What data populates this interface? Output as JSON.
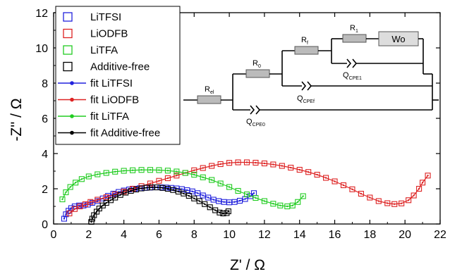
{
  "chart_data": {
    "type": "scatter",
    "xlabel": "Z' / Ω",
    "ylabel": "-Z'' / Ω",
    "xlim": [
      0,
      22
    ],
    "ylim": [
      0,
      12
    ],
    "xticks": [
      "0",
      "2",
      "4",
      "6",
      "8",
      "10",
      "12",
      "14",
      "16",
      "18",
      "20",
      "22"
    ],
    "yticks": [
      "0",
      "2",
      "4",
      "6",
      "8",
      "10",
      "12"
    ],
    "grid": false,
    "legend_position": "top-left",
    "series": [
      {
        "name": "LiTFSI",
        "fit_name": "fit LiTFSI",
        "color": "#2222dd",
        "points": [
          [
            0.6,
            0.3
          ],
          [
            0.7,
            0.55
          ],
          [
            0.85,
            0.75
          ],
          [
            1.0,
            0.9
          ],
          [
            1.2,
            1.0
          ],
          [
            1.45,
            1.05
          ],
          [
            1.7,
            1.05
          ],
          [
            1.95,
            1.1
          ],
          [
            2.2,
            1.2
          ],
          [
            2.5,
            1.3
          ],
          [
            2.8,
            1.45
          ],
          [
            3.1,
            1.6
          ],
          [
            3.4,
            1.72
          ],
          [
            3.7,
            1.82
          ],
          [
            4.0,
            1.9
          ],
          [
            4.3,
            1.96
          ],
          [
            4.6,
            2.0
          ],
          [
            4.9,
            2.03
          ],
          [
            5.2,
            2.05
          ],
          [
            5.5,
            2.07
          ],
          [
            5.8,
            2.08
          ],
          [
            6.1,
            2.08
          ],
          [
            6.4,
            2.07
          ],
          [
            6.7,
            2.05
          ],
          [
            7.0,
            2.02
          ],
          [
            7.3,
            1.98
          ],
          [
            7.6,
            1.92
          ],
          [
            7.9,
            1.85
          ],
          [
            8.2,
            1.75
          ],
          [
            8.5,
            1.62
          ],
          [
            8.8,
            1.5
          ],
          [
            9.1,
            1.38
          ],
          [
            9.4,
            1.3
          ],
          [
            9.7,
            1.25
          ],
          [
            10.0,
            1.23
          ],
          [
            10.3,
            1.25
          ],
          [
            10.6,
            1.32
          ],
          [
            10.9,
            1.42
          ],
          [
            11.2,
            1.58
          ],
          [
            11.4,
            1.75
          ]
        ]
      },
      {
        "name": "LiODFB",
        "fit_name": "fit LiODFB",
        "color": "#dd2222",
        "points": [
          [
            0.9,
            0.6
          ],
          [
            1.2,
            0.85
          ],
          [
            1.5,
            1.0
          ],
          [
            1.8,
            1.12
          ],
          [
            2.1,
            1.25
          ],
          [
            2.5,
            1.38
          ],
          [
            3.0,
            1.52
          ],
          [
            3.5,
            1.68
          ],
          [
            4.0,
            1.84
          ],
          [
            4.5,
            2.0
          ],
          [
            5.0,
            2.15
          ],
          [
            5.5,
            2.3
          ],
          [
            6.0,
            2.45
          ],
          [
            6.5,
            2.6
          ],
          [
            7.0,
            2.75
          ],
          [
            7.5,
            2.9
          ],
          [
            8.0,
            3.05
          ],
          [
            8.5,
            3.18
          ],
          [
            9.0,
            3.3
          ],
          [
            9.5,
            3.4
          ],
          [
            10.0,
            3.47
          ],
          [
            10.5,
            3.5
          ],
          [
            11.0,
            3.5
          ],
          [
            11.5,
            3.48
          ],
          [
            12.0,
            3.44
          ],
          [
            12.5,
            3.38
          ],
          [
            13.0,
            3.3
          ],
          [
            13.5,
            3.2
          ],
          [
            14.0,
            3.08
          ],
          [
            14.5,
            2.95
          ],
          [
            15.0,
            2.8
          ],
          [
            15.5,
            2.62
          ],
          [
            16.0,
            2.42
          ],
          [
            16.5,
            2.2
          ],
          [
            17.0,
            1.97
          ],
          [
            17.5,
            1.72
          ],
          [
            18.0,
            1.5
          ],
          [
            18.5,
            1.3
          ],
          [
            19.0,
            1.18
          ],
          [
            19.4,
            1.13
          ],
          [
            19.8,
            1.17
          ],
          [
            20.2,
            1.35
          ],
          [
            20.5,
            1.62
          ],
          [
            20.8,
            2.0
          ],
          [
            21.0,
            2.35
          ],
          [
            21.3,
            2.75
          ]
        ]
      },
      {
        "name": "LiTFA",
        "fit_name": "fit LiTFA",
        "color": "#22cc22",
        "points": [
          [
            0.5,
            1.4
          ],
          [
            0.7,
            1.8
          ],
          [
            0.95,
            2.1
          ],
          [
            1.25,
            2.35
          ],
          [
            1.6,
            2.55
          ],
          [
            2.0,
            2.7
          ],
          [
            2.5,
            2.82
          ],
          [
            3.0,
            2.9
          ],
          [
            3.5,
            2.97
          ],
          [
            4.0,
            3.02
          ],
          [
            4.5,
            3.05
          ],
          [
            5.0,
            3.07
          ],
          [
            5.5,
            3.07
          ],
          [
            6.0,
            3.06
          ],
          [
            6.5,
            3.03
          ],
          [
            7.0,
            2.98
          ],
          [
            7.5,
            2.9
          ],
          [
            8.0,
            2.8
          ],
          [
            8.5,
            2.65
          ],
          [
            9.0,
            2.5
          ],
          [
            9.5,
            2.3
          ],
          [
            10.0,
            2.1
          ],
          [
            10.5,
            1.88
          ],
          [
            11.0,
            1.68
          ],
          [
            11.5,
            1.48
          ],
          [
            12.0,
            1.3
          ],
          [
            12.5,
            1.15
          ],
          [
            12.9,
            1.05
          ],
          [
            13.3,
            1.0
          ],
          [
            13.6,
            1.05
          ],
          [
            13.9,
            1.25
          ],
          [
            14.2,
            1.58
          ]
        ]
      },
      {
        "name": "Additive-free",
        "fit_name": "fit Additive-free",
        "color": "#000000",
        "points": [
          [
            2.15,
            0.12
          ],
          [
            2.2,
            0.3
          ],
          [
            2.3,
            0.5
          ],
          [
            2.45,
            0.7
          ],
          [
            2.6,
            0.88
          ],
          [
            2.8,
            1.05
          ],
          [
            3.0,
            1.2
          ],
          [
            3.25,
            1.35
          ],
          [
            3.5,
            1.5
          ],
          [
            3.8,
            1.65
          ],
          [
            4.1,
            1.78
          ],
          [
            4.4,
            1.88
          ],
          [
            4.7,
            1.96
          ],
          [
            5.0,
            2.02
          ],
          [
            5.3,
            2.06
          ],
          [
            5.6,
            2.08
          ],
          [
            5.9,
            2.08
          ],
          [
            6.2,
            2.05
          ],
          [
            6.5,
            2.0
          ],
          [
            6.8,
            1.93
          ],
          [
            7.1,
            1.84
          ],
          [
            7.4,
            1.73
          ],
          [
            7.7,
            1.6
          ],
          [
            8.0,
            1.45
          ],
          [
            8.3,
            1.3
          ],
          [
            8.6,
            1.13
          ],
          [
            8.9,
            0.95
          ],
          [
            9.2,
            0.78
          ],
          [
            9.45,
            0.65
          ],
          [
            9.65,
            0.6
          ],
          [
            9.85,
            0.62
          ],
          [
            9.95,
            0.72
          ]
        ]
      }
    ],
    "circuit": {
      "elements": [
        "R",
        "el",
        "R",
        "0",
        "R",
        "f",
        "R",
        "1",
        "Wo",
        "Q",
        "CPE0",
        "Q",
        "CPEf",
        "Q",
        "CPE1"
      ]
    }
  }
}
